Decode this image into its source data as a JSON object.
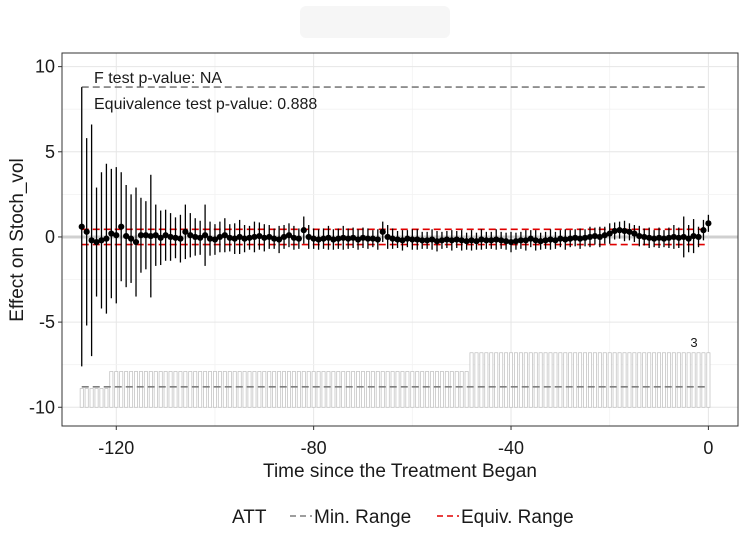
{
  "chart_data": {
    "type": "scatter",
    "title": "",
    "xlabel": "Time since the Treatment Began",
    "ylabel": "Effect on Stoch_vol",
    "xlim": [
      -131,
      6
    ],
    "ylim": [
      -11.1,
      10.8
    ],
    "x_ticks": [
      -120,
      -80,
      -40,
      0
    ],
    "x_tick_labels": [
      "-120",
      "-80",
      "-40",
      "0"
    ],
    "y_ticks": [
      -10,
      -5,
      0,
      5,
      10
    ],
    "y_tick_labels": [
      "-10",
      "-5",
      "0",
      "5",
      "10"
    ],
    "grid": true,
    "legend_position": "bottom",
    "legend": {
      "title": "ATT",
      "entries": [
        {
          "label": "Min. Range",
          "color": "#7f7f7f",
          "dash": "dashed"
        },
        {
          "label": "Equiv. Range",
          "color": "#e00000",
          "dash": "dashed"
        }
      ]
    },
    "annotations": {
      "f_test": "F test p-value: NA",
      "equivalence_test": "Equivalence test p-value: 0.888",
      "count_label": "3"
    },
    "min_range": 8.8,
    "equiv_range": 0.45,
    "zero_line": 0,
    "count_bars": {
      "baseline": -10,
      "segments": [
        {
          "x_from": -127,
          "x_to": -122,
          "top": -8.9
        },
        {
          "x_from": -121,
          "x_to": -49,
          "top": -7.9
        },
        {
          "x_from": -48,
          "x_to": 0,
          "top": -6.8
        }
      ]
    },
    "series": [
      {
        "x": [
          -127,
          -126,
          -125,
          -124,
          -123,
          -122,
          -121,
          -120,
          -119,
          -118,
          -117,
          -116,
          -115,
          -114,
          -113,
          -112,
          -111,
          -110,
          -109,
          -108,
          -107,
          -106,
          -105,
          -104,
          -103,
          -102,
          -101,
          -100,
          -99,
          -98,
          -97,
          -96,
          -95,
          -94,
          -93,
          -92,
          -91,
          -90,
          -89,
          -88,
          -87,
          -86,
          -85,
          -84,
          -83,
          -82,
          -81,
          -80,
          -79,
          -78,
          -77,
          -76,
          -75,
          -74,
          -73,
          -72,
          -71,
          -70,
          -69,
          -68,
          -67,
          -66,
          -65,
          -64,
          -63,
          -62,
          -61,
          -60,
          -59,
          -58,
          -57,
          -56,
          -55,
          -54,
          -53,
          -52,
          -51,
          -50,
          -49,
          -48,
          -47,
          -46,
          -45,
          -44,
          -43,
          -42,
          -41,
          -40,
          -39,
          -38,
          -37,
          -36,
          -35,
          -34,
          -33,
          -32,
          -31,
          -30,
          -29,
          -28,
          -27,
          -26,
          -25,
          -24,
          -23,
          -22,
          -21,
          -20,
          -19,
          -18,
          -17,
          -16,
          -15,
          -14,
          -13,
          -12,
          -11,
          -10,
          -9,
          -8,
          -7,
          -6,
          -5,
          -4,
          -3,
          -2,
          -1,
          0
        ],
        "y": [
          0.6,
          0.3,
          -0.2,
          -0.3,
          -0.2,
          -0.1,
          0.2,
          0.1,
          0.6,
          0.05,
          -0.1,
          -0.3,
          0.1,
          0.1,
          0.05,
          0.1,
          -0.05,
          0.1,
          0.0,
          -0.05,
          -0.1,
          0.3,
          0.1,
          0.0,
          -0.05,
          0.1,
          -0.1,
          -0.15,
          0.0,
          0.1,
          -0.05,
          -0.1,
          0.0,
          -0.1,
          -0.05,
          0.0,
          0.05,
          -0.05,
          0.0,
          -0.1,
          -0.15,
          0.0,
          0.1,
          -0.05,
          -0.1,
          0.4,
          0.0,
          -0.1,
          -0.15,
          -0.1,
          -0.05,
          -0.15,
          -0.1,
          -0.05,
          -0.1,
          -0.05,
          -0.15,
          -0.05,
          -0.1,
          -0.1,
          -0.15,
          0.3,
          0.0,
          -0.1,
          -0.15,
          -0.2,
          -0.1,
          -0.15,
          -0.15,
          -0.2,
          -0.2,
          -0.15,
          -0.25,
          -0.2,
          -0.15,
          -0.2,
          -0.15,
          -0.2,
          -0.25,
          -0.2,
          -0.25,
          -0.15,
          -0.2,
          -0.2,
          -0.15,
          -0.2,
          -0.25,
          -0.3,
          -0.25,
          -0.2,
          -0.2,
          -0.1,
          -0.2,
          -0.25,
          -0.2,
          -0.15,
          -0.2,
          -0.1,
          -0.15,
          -0.1,
          -0.05,
          -0.1,
          -0.05,
          0.0,
          0.05,
          0.0,
          0.1,
          0.2,
          0.35,
          0.4,
          0.35,
          0.3,
          0.2,
          0.05,
          0.0,
          -0.05,
          -0.1,
          -0.05,
          -0.1,
          -0.05,
          0.0,
          -0.05,
          0.0,
          -0.1,
          0.05,
          0.0,
          0.4,
          0.8
        ],
        "ci_half": [
          8.2,
          5.5,
          6.8,
          3.2,
          4.0,
          4.4,
          3.8,
          4.0,
          3.2,
          3.0,
          2.6,
          3.2,
          2.2,
          2.0,
          3.6,
          1.8,
          1.6,
          1.5,
          1.4,
          1.2,
          1.4,
          1.6,
          1.3,
          1.1,
          1.0,
          1.8,
          1.0,
          0.9,
          0.9,
          1.0,
          0.8,
          0.9,
          1.0,
          0.8,
          0.7,
          0.9,
          0.8,
          0.8,
          0.7,
          0.6,
          0.8,
          0.7,
          0.7,
          0.7,
          0.6,
          0.8,
          0.7,
          0.6,
          0.6,
          0.6,
          0.7,
          0.6,
          0.6,
          0.7,
          0.6,
          0.6,
          0.6,
          0.6,
          0.6,
          0.5,
          0.6,
          0.6,
          0.7,
          0.6,
          0.5,
          0.6,
          0.5,
          0.6,
          0.6,
          0.5,
          0.5,
          0.6,
          0.6,
          0.5,
          0.5,
          0.6,
          0.5,
          0.6,
          0.5,
          0.6,
          0.5,
          0.6,
          0.5,
          0.5,
          0.6,
          0.5,
          0.5,
          0.6,
          0.5,
          0.5,
          0.6,
          0.5,
          0.6,
          0.5,
          0.5,
          0.6,
          0.5,
          0.5,
          0.6,
          0.5,
          0.5,
          0.6,
          0.5,
          0.6,
          0.5,
          0.6,
          0.5,
          0.6,
          0.5,
          0.5,
          0.6,
          0.5,
          0.5,
          0.6,
          0.5,
          0.6,
          0.5,
          0.6,
          0.5,
          0.6,
          0.7,
          0.6,
          1.2,
          0.8,
          1.0,
          0.6,
          0.6,
          0.5
        ]
      }
    ]
  }
}
